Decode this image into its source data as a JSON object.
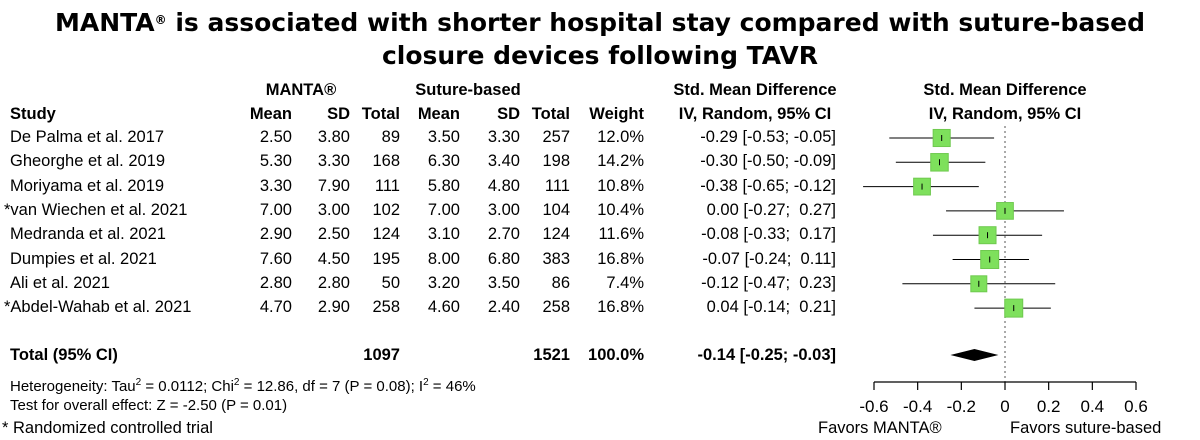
{
  "chart_data": {
    "type": "forest",
    "title": "is associated with shorter hospital stay compared with suture-based closure devices following TAVR",
    "title_brand": "MANTA",
    "title_brand_mark": "®",
    "group_headers": {
      "g1": "MANTA®",
      "g2": "Suture-based",
      "smd_text": "Std. Mean Difference",
      "smd_plot": "Std. Mean Difference"
    },
    "columns": {
      "study": "Study",
      "mean1": "Mean",
      "sd1": "SD",
      "total1": "Total",
      "mean2": "Mean",
      "sd2": "SD",
      "total2": "Total",
      "weight": "Weight",
      "ci_text": "IV, Random, 95% CI",
      "ci_plot": "IV, Random, 95% CI"
    },
    "studies": [
      {
        "study": "De Palma et al. 2017",
        "mean1": "2.50",
        "sd1": "3.80",
        "total1": "89",
        "mean2": "3.50",
        "sd2": "3.30",
        "total2": "257",
        "weight": "12.0%",
        "ci_text": "-0.29 [-0.53; -0.05]",
        "smd": -0.29,
        "lo": -0.53,
        "hi": -0.05,
        "w": 12.0
      },
      {
        "study": "Gheorghe et al. 2019",
        "mean1": "5.30",
        "sd1": "3.30",
        "total1": "168",
        "mean2": "6.30",
        "sd2": "3.40",
        "total2": "198",
        "weight": "14.2%",
        "ci_text": "-0.30 [-0.50; -0.09]",
        "smd": -0.3,
        "lo": -0.5,
        "hi": -0.09,
        "w": 14.2
      },
      {
        "study": "Moriyama et al. 2019",
        "mean1": "3.30",
        "sd1": "7.90",
        "total1": "111",
        "mean2": "5.80",
        "sd2": "4.80",
        "total2": "111",
        "weight": "10.8%",
        "ci_text": "-0.38 [-0.65; -0.12]",
        "smd": -0.38,
        "lo": -0.65,
        "hi": -0.12,
        "w": 10.8
      },
      {
        "study": "*van Wiechen et al. 2021",
        "mean1": "7.00",
        "sd1": "3.00",
        "total1": "102",
        "mean2": "7.00",
        "sd2": "3.00",
        "total2": "104",
        "weight": "10.4%",
        "ci_text": "0.00 [-0.27;  0.27]",
        "smd": 0.0,
        "lo": -0.27,
        "hi": 0.27,
        "w": 10.4
      },
      {
        "study": "Medranda et al. 2021",
        "mean1": "2.90",
        "sd1": "2.50",
        "total1": "124",
        "mean2": "3.10",
        "sd2": "2.70",
        "total2": "124",
        "weight": "11.6%",
        "ci_text": "-0.08 [-0.33;  0.17]",
        "smd": -0.08,
        "lo": -0.33,
        "hi": 0.17,
        "w": 11.6
      },
      {
        "study": "Dumpies et al. 2021",
        "mean1": "7.60",
        "sd1": "4.50",
        "total1": "195",
        "mean2": "8.00",
        "sd2": "6.80",
        "total2": "383",
        "weight": "16.8%",
        "ci_text": "-0.07 [-0.24;  0.11]",
        "smd": -0.07,
        "lo": -0.24,
        "hi": 0.11,
        "w": 16.8
      },
      {
        "study": "Ali et al. 2021",
        "mean1": "2.80",
        "sd1": "2.80",
        "total1": "50",
        "mean2": "3.20",
        "sd2": "3.50",
        "total2": "86",
        "weight": "7.4%",
        "ci_text": "-0.12 [-0.47;  0.23]",
        "smd": -0.12,
        "lo": -0.47,
        "hi": 0.23,
        "w": 7.4
      },
      {
        "study": "*Abdel-Wahab et al. 2021",
        "mean1": "4.70",
        "sd1": "2.90",
        "total1": "258",
        "mean2": "4.60",
        "sd2": "2.40",
        "total2": "258",
        "weight": "16.8%",
        "ci_text": "0.04 [-0.14;  0.21]",
        "smd": 0.04,
        "lo": -0.14,
        "hi": 0.21,
        "w": 16.8
      }
    ],
    "total": {
      "label": "Total (95% CI)",
      "total1": "1097",
      "total2": "1521",
      "weight": "100.0%",
      "ci_text": "-0.14 [-0.25; -0.03]",
      "smd": -0.14,
      "lo": -0.25,
      "hi": -0.03
    },
    "heterogeneity": {
      "prefix": "Heterogeneity: Tau",
      "tau2": " = 0.0112; Chi",
      "chi2": " = 12.86, df = 7 (P = 0.08); I",
      "i2": " = 46%",
      "sq": "2"
    },
    "overall_test": "Test for overall effect: Z = -2.50 (P = 0.01)",
    "footnote": "* Randomized controlled trial",
    "x_ticks": [
      "-0.6",
      "-0.4",
      "-0.2",
      "0",
      "0.2",
      "0.4",
      "0.6"
    ],
    "x_tick_values": [
      -0.6,
      -0.4,
      -0.2,
      0,
      0.2,
      0.4,
      0.6
    ],
    "xlim": [
      -0.6,
      0.6
    ],
    "favors_left": "Favors MANTA®",
    "favors_right": "Favors suture-based",
    "colors": {
      "box": "#7ee05c",
      "box_stroke": "#6fc94f",
      "diamond": "#000000"
    }
  }
}
